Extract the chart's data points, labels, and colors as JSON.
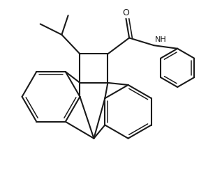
{
  "bg_color": "#ffffff",
  "line_color": "#1a1a1a",
  "line_width": 1.5,
  "fig_width": 3.18,
  "fig_height": 2.47,
  "dpi": 100
}
